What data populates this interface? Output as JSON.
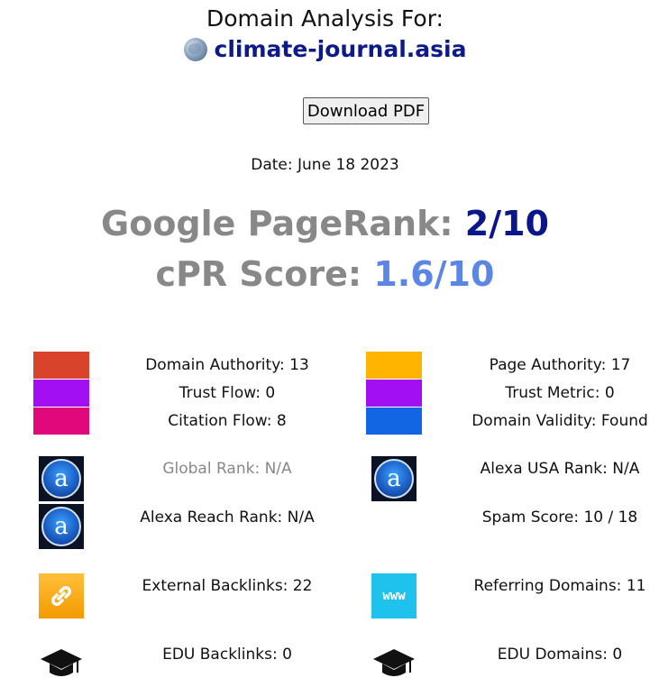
{
  "header": {
    "title": "Domain Analysis For:",
    "domain": "climate-journal.asia",
    "download_label": "Download PDF",
    "date": "Date: June 18 2023"
  },
  "scores": {
    "pagerank_label": "Google PageRank: ",
    "pagerank_value": "2/10",
    "cpr_label": "cPR Score: ",
    "cpr_value": "1.6/10"
  },
  "metrics": {
    "domain_authority": "Domain Authority: 13",
    "trust_flow": "Trust Flow: 0",
    "citation_flow": "Citation Flow: 8",
    "page_authority": "Page Authority: 17",
    "trust_metric": "Trust Metric: 0",
    "domain_validity": "Domain Validity: Found",
    "global_rank": "Global Rank: N/A",
    "alexa_usa_rank": "Alexa USA Rank: N/A",
    "alexa_reach_rank": "Alexa Reach Rank: N/A",
    "spam_score": "Spam Score: 10 / 18",
    "external_backlinks": "External Backlinks: 22",
    "referring_domains": "Referring Domains: 11",
    "edu_backlinks": "EDU Backlinks: 0",
    "edu_domains": "EDU Domains: 0"
  },
  "colors": {
    "domain_authority": "#d9432b",
    "trust_flow": "#a10ff2",
    "citation_flow": "#e0087a",
    "page_authority": "#ffb400",
    "trust_metric": "#a10ff2",
    "domain_validity": "#1266e3"
  },
  "icons": {
    "alexa": "alexa-icon",
    "backlinks": "chain-link-icon",
    "referring": "www-icon",
    "edu": "graduation-cap-icon"
  },
  "www_text": "www",
  "alexa_letter": "a"
}
